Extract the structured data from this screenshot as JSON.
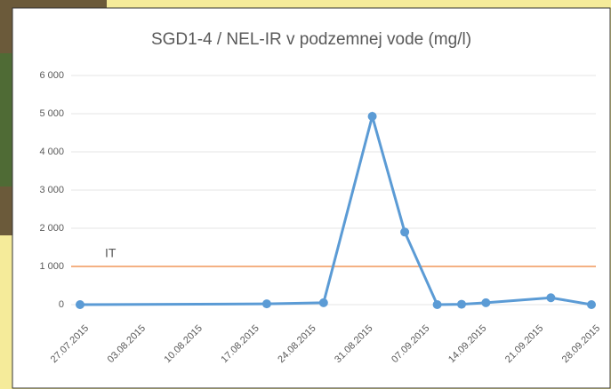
{
  "chart_data": {
    "type": "line",
    "title": "SGD1-4 / NEL-IR v podzemnej  vode (mg/l)",
    "x": [
      "2015-07-27",
      "2015-08-19",
      "2015-08-26",
      "2015-09-01",
      "2015-09-05",
      "2015-09-09",
      "2015-09-12",
      "2015-09-15",
      "2015-09-23",
      "2015-09-28"
    ],
    "series": [
      {
        "color": "#5b9bd5",
        "values": [
          0,
          20,
          50,
          4930,
          1900,
          0,
          10,
          50,
          180,
          0
        ]
      }
    ],
    "xlim": [
      "2015-07-27",
      "2015-09-28"
    ],
    "xticks": [
      {
        "value": "2015-07-27",
        "label": "27.07.2015"
      },
      {
        "value": "2015-08-03",
        "label": "03.08.2015"
      },
      {
        "value": "2015-08-10",
        "label": "10.08.2015"
      },
      {
        "value": "2015-08-17",
        "label": "17.08.2015"
      },
      {
        "value": "2015-08-24",
        "label": "24.08.2015"
      },
      {
        "value": "2015-08-31",
        "label": "31.08.2015"
      },
      {
        "value": "2015-09-07",
        "label": "07.09.2015"
      },
      {
        "value": "2015-09-14",
        "label": "14.09.2015"
      },
      {
        "value": "2015-09-21",
        "label": "21.09.2015"
      },
      {
        "value": "2015-09-28",
        "label": "28.09.2015"
      }
    ],
    "ylim": [
      0,
      6000
    ],
    "yticks": [
      0,
      {
        "value": 1000,
        "label": "1 000"
      },
      {
        "value": 2000,
        "label": "2 000"
      },
      {
        "value": 3000,
        "label": "3 000"
      },
      {
        "value": 4000,
        "label": "4 000"
      },
      {
        "value": 5000,
        "label": "5 000"
      },
      {
        "value": 6000,
        "label": "6 000"
      }
    ],
    "grid": true,
    "reference_line": {
      "label": "IT",
      "value": 1000,
      "color": "#f4b183"
    }
  }
}
